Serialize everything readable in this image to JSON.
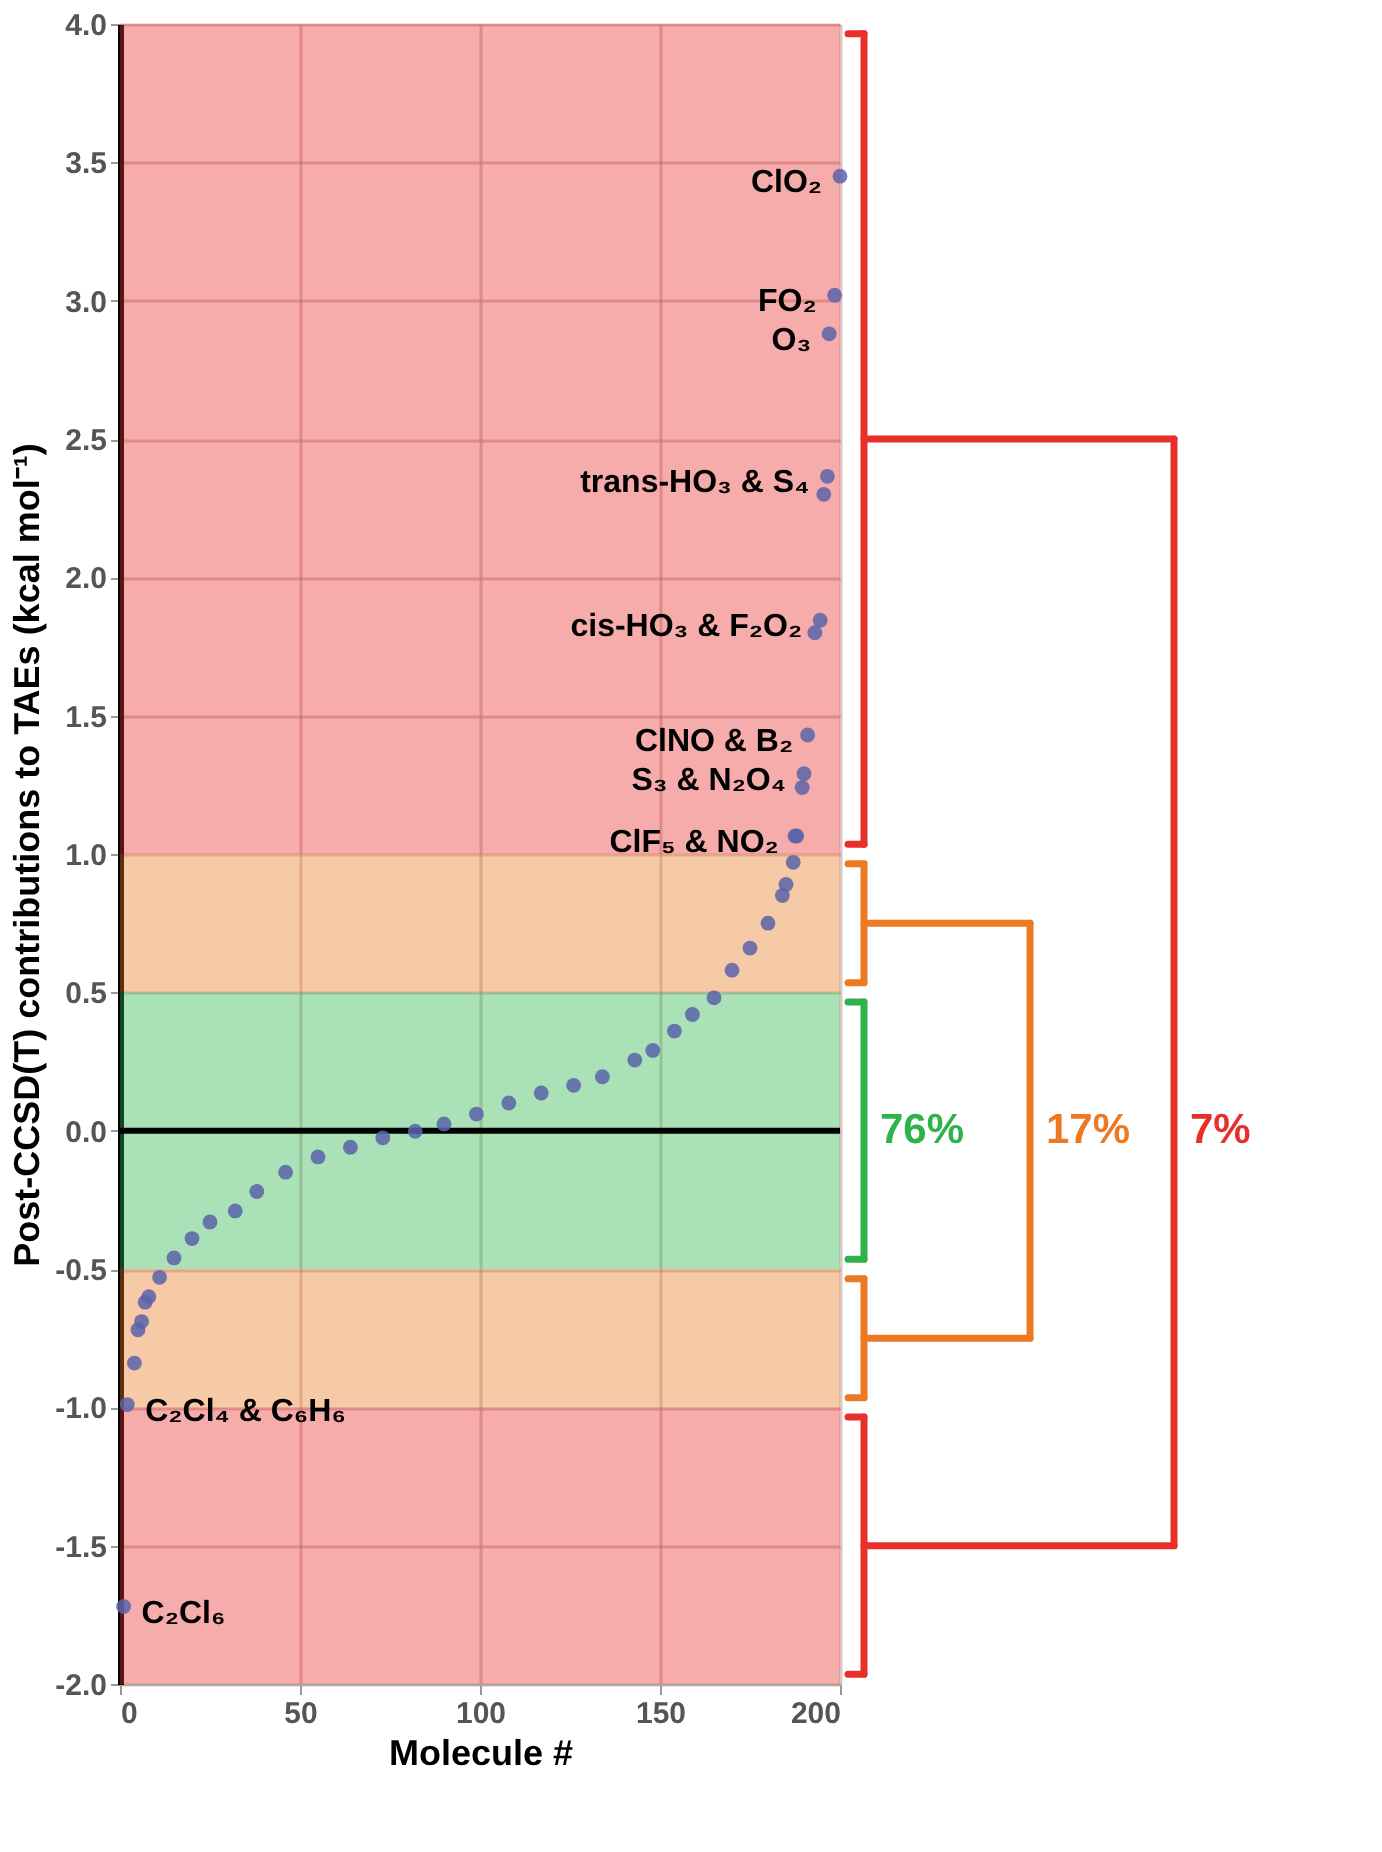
{
  "chart_data": {
    "type": "scatter",
    "xlabel": "Molecule #",
    "ylabel": "Post-CCSD(T) contributions to TAEs (kcal mol⁻¹)",
    "xlim": [
      0,
      200
    ],
    "xticks": [
      0,
      50,
      100,
      150,
      200
    ],
    "ylim": [
      -2,
      4
    ],
    "yticks": [
      {
        "value": -2,
        "label": "-2.0"
      },
      {
        "value": -1.5,
        "label": "-1.5"
      },
      {
        "value": -1,
        "label": "-1.0"
      },
      {
        "value": -0.5,
        "label": "-0.5"
      },
      {
        "value": 0,
        "label": "0.0"
      },
      {
        "value": 0.5,
        "label": "0.5"
      },
      {
        "value": 1,
        "label": "1.0"
      },
      {
        "value": 1.5,
        "label": "1.5"
      },
      {
        "value": 2,
        "label": "2.0"
      },
      {
        "value": 2.5,
        "label": "2.5"
      },
      {
        "value": 3,
        "label": "3.0"
      },
      {
        "value": 3.5,
        "label": "3.5"
      },
      {
        "value": 4,
        "label": "4.0"
      }
    ],
    "grid": true,
    "marker": "circle",
    "series": [
      {
        "color": "#5a63a8",
        "x": [
          1,
          2,
          4,
          5,
          6,
          7,
          8,
          11,
          15,
          20,
          25,
          32,
          38,
          46,
          55,
          64,
          73,
          82,
          90,
          99,
          108,
          117,
          126,
          134,
          143,
          148,
          154,
          159,
          165,
          170,
          175,
          180,
          184,
          185,
          187,
          187.5,
          188,
          189.5,
          190,
          191,
          193,
          194.5,
          195.5,
          196.5,
          197,
          198.5,
          200
        ],
        "values": [
          -1.72,
          -0.99,
          -0.84,
          -0.72,
          -0.69,
          -0.62,
          -0.6,
          -0.53,
          -0.46,
          -0.39,
          -0.33,
          -0.29,
          -0.22,
          -0.15,
          -0.095,
          -0.06,
          -0.026,
          -0.002,
          0.024,
          0.06,
          0.1,
          0.136,
          0.164,
          0.195,
          0.255,
          0.29,
          0.36,
          0.42,
          0.48,
          0.58,
          0.66,
          0.75,
          0.85,
          0.89,
          0.97,
          1.065,
          1.065,
          1.24,
          1.29,
          1.43,
          1.8,
          1.845,
          2.3,
          2.365,
          2.88,
          3.02,
          3.45
        ]
      }
    ],
    "ref_lines": [
      {
        "axis": "y",
        "value": 0,
        "color": "#000000"
      }
    ],
    "bands": [
      {
        "axis": "y",
        "from": 1,
        "to": 4,
        "color": "#e8302a",
        "label": "7%"
      },
      {
        "axis": "y",
        "from": 0.5,
        "to": 1,
        "color": "#ec7a23",
        "label": "17%"
      },
      {
        "axis": "y",
        "from": -0.5,
        "to": 0.5,
        "color": "#2db34a",
        "label": "76%"
      },
      {
        "axis": "y",
        "from": -1,
        "to": -0.5,
        "color": "#ec7a23"
      },
      {
        "axis": "y",
        "from": -2,
        "to": -1,
        "color": "#e8302a"
      }
    ],
    "annotations": [
      {
        "text": "ClO₂",
        "x": 200,
        "y": 3.45
      },
      {
        "text": "FO₂",
        "x": 198.5,
        "y": 3.02
      },
      {
        "text": "O₃",
        "x": 197,
        "y": 2.88
      },
      {
        "text": "trans-HO₃ & S₄",
        "x": 196.5,
        "y": 2.365
      },
      {
        "text": "cis-HO₃ & F₂O₂",
        "x": 194.5,
        "y": 1.845
      },
      {
        "text": "ClNO & B₂",
        "x": 192,
        "y": 1.43
      },
      {
        "text": "S₃ & N₂O₄",
        "x": 190,
        "y": 1.29
      },
      {
        "text": "ClF₅ & NO₂",
        "x": 188,
        "y": 1.065
      },
      {
        "text": "C₂Cl₄ & C₆H₆",
        "x": 2,
        "y": -0.99
      },
      {
        "text": "C₂Cl₆",
        "x": 1,
        "y": -1.72
      }
    ]
  }
}
